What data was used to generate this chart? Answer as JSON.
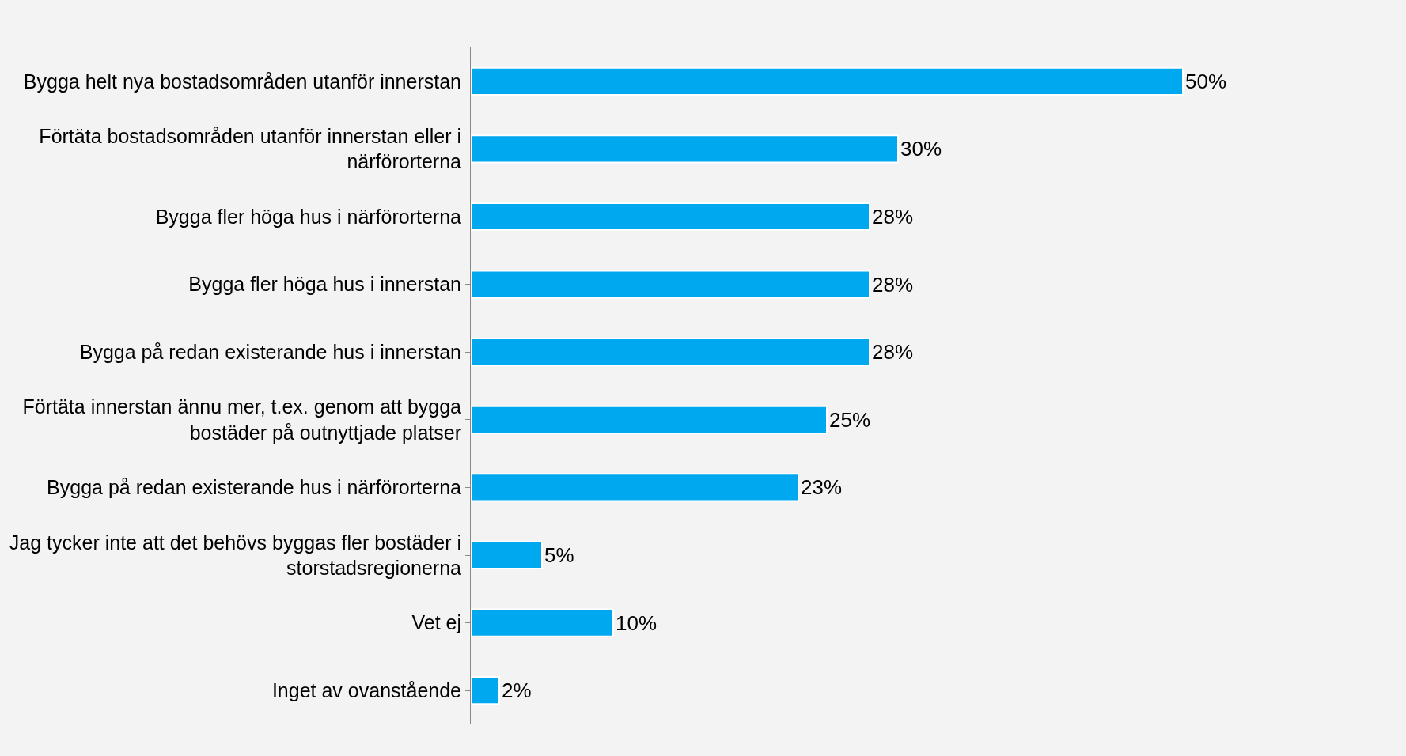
{
  "chart_data": {
    "type": "bar",
    "orientation": "horizontal",
    "categories": [
      "Bygga helt nya bostadsområden utanför innerstan",
      "Förtäta bostadsområden utanför innerstan eller i\nnärförorterna",
      "Bygga fler höga hus i närförorterna",
      "Bygga fler höga hus i innerstan",
      "Bygga på redan existerande hus i innerstan",
      "Förtäta innerstan ännu mer, t.ex. genom att bygga\nbostäder på outnyttjade platser",
      "Bygga på redan existerande hus i närförorterna",
      "Jag tycker inte att det behövs byggas fler bostäder i\nstorstadsregionerna",
      "Vet ej",
      "Inget av ovanstående"
    ],
    "values": [
      50,
      30,
      28,
      28,
      28,
      25,
      23,
      5,
      10,
      2
    ],
    "value_labels": [
      "50%",
      "30%",
      "28%",
      "28%",
      "28%",
      "25%",
      "23%",
      "5%",
      "10%",
      "2%"
    ],
    "color": "#00a8f0",
    "grid": false,
    "legend": false,
    "tick_labels": "y"
  }
}
